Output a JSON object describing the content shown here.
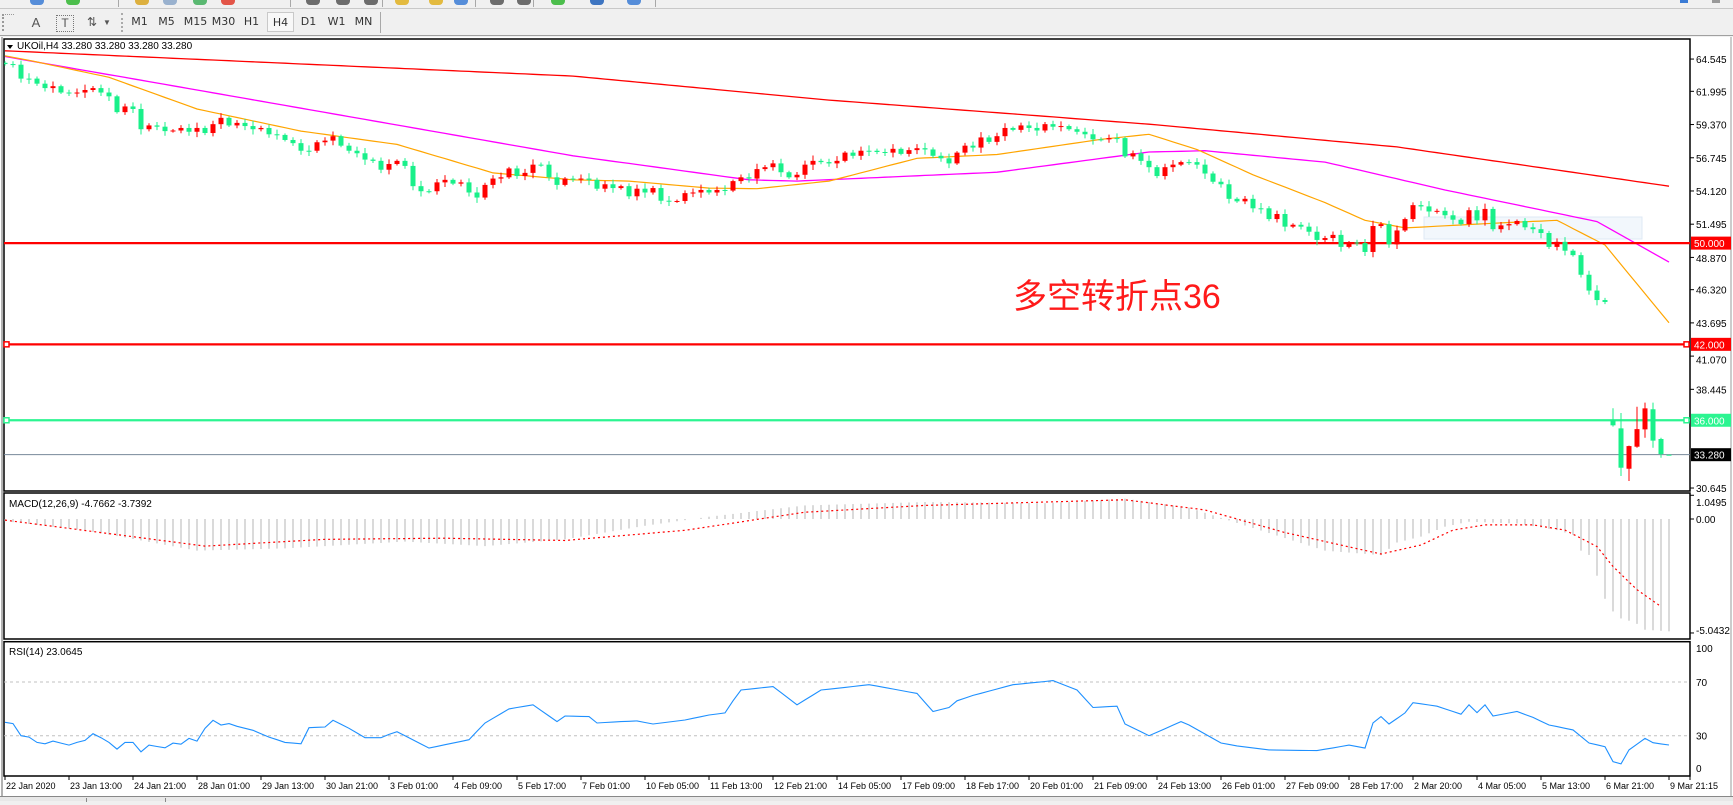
{
  "toolbar": {
    "row1_icons": [
      {
        "name": "zoom-icon",
        "color": "#3a7bd5"
      },
      {
        "name": "new-order-icon",
        "color": "#2fb52f"
      },
      {
        "name": "market-watch-icon",
        "color": "#d9a520"
      },
      {
        "name": "data-window-icon",
        "color": "#8aa6c8"
      },
      {
        "name": "navigator-icon",
        "color": "#3fae5a"
      },
      {
        "name": "stop-icon",
        "color": "#e03a2a"
      },
      {
        "name": "crosshair-icon",
        "color": "#555555"
      },
      {
        "name": "period-separator-icon",
        "color": "#555555"
      },
      {
        "name": "grid-icon",
        "color": "#555555"
      },
      {
        "name": "pencil-icon",
        "color": "#e0b020"
      },
      {
        "name": "pencil-icon",
        "color": "#e0b020"
      },
      {
        "name": "tile-windows-icon",
        "color": "#3a7bd5"
      },
      {
        "name": "hline-icon",
        "color": "#555555"
      },
      {
        "name": "hline-icon",
        "color": "#555555"
      },
      {
        "name": "add-icon",
        "color": "#2fb52f"
      },
      {
        "name": "refresh-icon",
        "color": "#1e5fb8"
      },
      {
        "name": "chart-icon",
        "color": "#3a7bd5"
      }
    ],
    "row2_tools": {
      "text_label": "A",
      "text_box_label": "T"
    },
    "timeframes": [
      "M1",
      "M5",
      "M15",
      "M30",
      "H1",
      "H4",
      "D1",
      "W1",
      "MN"
    ],
    "active_timeframe": "H4"
  },
  "chart_title": "UKOil,H4  33.280 33.280 33.280 33.280",
  "annotation": "多空转折点36",
  "chart_data": {
    "type": "candlestick",
    "symbol": "UKOil",
    "timeframe": "H4",
    "colors": {
      "bull": "#ff0000",
      "bear": "#19f08a",
      "ma_fast": "#ffa500",
      "ma_mid": "#ff00ff",
      "ma_slow": "#ff0000",
      "rsi": "#1e90ff",
      "macd_hist": "#c0c0c0",
      "macd_signal": "#ff0000"
    },
    "price_axis": {
      "ylim": [
        30.41,
        66.13
      ],
      "ticks": [
        "64.545",
        "61.995",
        "59.370",
        "56.745",
        "54.120",
        "51.495",
        "48.870",
        "46.320",
        "43.695",
        "41.070",
        "38.445",
        "30.645"
      ]
    },
    "horizontal_lines": [
      {
        "price": 50.0,
        "label": "50.000",
        "color": "#ff0000",
        "label_text_color": "#ffffff",
        "markers": false
      },
      {
        "price": 42.0,
        "label": "42.000",
        "color": "#ff0000",
        "label_text_color": "#ffffff",
        "markers": true
      },
      {
        "price": 36.0,
        "label": "36.000",
        "color": "#2cf591",
        "label_text_color": "#ffffff",
        "markers": true
      },
      {
        "price": 33.28,
        "label": "33.280",
        "color": "#778899",
        "label_bg": "#000000",
        "label_text_color": "#ffffff",
        "markers": false,
        "thin": true
      }
    ],
    "bars": {
      "close": [
        64.15,
        64.1,
        63.0,
        63.0,
        62.6,
        62.25,
        62.4,
        61.9,
        61.85,
        61.9,
        62.1,
        62.25,
        61.9,
        61.6,
        60.35,
        60.8,
        60.6,
        59.0,
        59.3,
        59.2,
        58.85,
        58.9,
        59.1,
        58.8,
        59.1,
        58.7,
        59.4,
        59.9,
        59.3,
        59.5,
        59.25,
        59.0,
        59.1,
        58.6,
        58.55,
        58.15,
        57.9,
        57.3,
        57.3,
        57.97,
        58.1,
        58.45,
        57.7,
        57.3,
        57.1,
        56.6,
        56.5,
        55.8,
        56.25,
        56.5,
        56.1,
        54.5,
        54.1,
        54.1,
        54.8,
        55.0,
        54.7,
        54.8,
        54.0,
        53.6,
        54.6,
        55.1,
        55.2,
        55.9,
        55.3,
        55.55,
        56.2,
        56.2,
        55.2,
        54.6,
        55.1,
        55.05,
        55.1,
        55.0,
        54.3,
        54.65,
        54.35,
        54.5,
        53.7,
        54.3,
        54.0,
        54.35,
        53.35,
        53.3,
        53.33,
        53.95,
        54.0,
        54.2,
        54.0,
        54.2,
        54.15,
        54.9,
        55.2,
        55.1,
        55.85,
        56.0,
        56.3,
        55.6,
        55.2,
        55.4,
        56.2,
        56.5,
        56.4,
        56.3,
        56.5,
        57.15,
        56.9,
        57.3,
        57.3,
        57.2,
        57.15,
        57.45,
        57.05,
        57.35,
        57.5,
        57.4,
        56.9,
        56.7,
        56.3,
        57.15,
        57.7,
        57.55,
        58.35,
        58.0,
        58.45,
        59.1,
        58.95,
        59.3,
        59.1,
        58.9,
        59.4,
        59.2,
        59.25,
        59.0,
        58.8,
        58.6,
        58.2,
        58.2,
        58.3,
        58.3,
        56.85,
        57.1,
        56.5,
        56.0,
        55.3,
        56.0,
        56.2,
        56.4,
        56.4,
        56.2,
        55.5,
        54.85,
        54.65,
        53.5,
        53.3,
        53.5,
        52.75,
        52.75,
        51.9,
        52.3,
        51.3,
        51.45,
        51.3,
        50.9,
        50.25,
        50.4,
        50.65,
        49.7,
        50.05,
        50.0,
        49.3,
        51.35,
        51.5,
        49.9,
        51.0,
        51.9,
        53.0,
        52.9,
        52.5,
        52.55,
        52.2,
        51.85,
        51.5,
        52.6,
        51.8,
        52.7,
        51.1,
        51.4,
        51.5,
        51.75,
        51.25,
        51.1,
        50.8,
        49.7,
        50.1,
        49.4,
        49.05,
        47.5,
        46.25,
        45.5,
        45.35
      ],
      "ohlc_after_gap": [
        [
          36.0,
          36.95,
          35.5,
          35.6
        ],
        [
          35.36,
          36.57,
          31.6,
          32.25
        ],
        [
          32.17,
          34.0,
          31.2,
          33.96
        ],
        [
          33.91,
          37.07,
          33.83,
          35.3
        ],
        [
          35.28,
          37.39,
          34.62,
          36.94
        ],
        [
          36.87,
          37.39,
          33.83,
          34.39
        ],
        [
          34.52,
          34.62,
          33.04,
          33.33
        ],
        [
          33.28,
          33.28,
          33.28,
          33.28
        ]
      ]
    },
    "moving_averages": {
      "fast": [
        [
          0,
          64.8
        ],
        [
          3,
          64.45
        ],
        [
          13,
          63.1
        ],
        [
          24,
          60.6
        ],
        [
          37,
          58.85
        ],
        [
          49,
          57.8
        ],
        [
          61,
          55.55
        ],
        [
          71,
          55.0
        ],
        [
          78,
          54.9
        ],
        [
          88,
          54.35
        ],
        [
          94,
          54.3
        ],
        [
          103,
          54.9
        ],
        [
          114,
          56.7
        ],
        [
          124,
          57.0
        ],
        [
          137,
          58.2
        ],
        [
          143,
          58.6
        ],
        [
          149,
          57.4
        ],
        [
          156,
          55.4
        ],
        [
          165,
          53.2
        ],
        [
          170,
          51.8
        ],
        [
          175,
          51.2
        ],
        [
          187,
          51.6
        ],
        [
          194,
          51.8
        ],
        [
          200,
          49.85
        ],
        [
          208,
          43.7
        ]
      ],
      "mid": [
        [
          0,
          64.75
        ],
        [
          71,
          56.9
        ],
        [
          93,
          55.0
        ],
        [
          99,
          54.9
        ],
        [
          124,
          55.6
        ],
        [
          143,
          57.2
        ],
        [
          150,
          57.3
        ],
        [
          165,
          56.4
        ],
        [
          180,
          54.2
        ],
        [
          199,
          51.7
        ],
        [
          208,
          48.5
        ]
      ],
      "slow": [
        [
          0,
          65.2
        ],
        [
          71,
          63.2
        ],
        [
          103,
          61.3
        ],
        [
          143,
          59.4
        ],
        [
          174,
          57.6
        ],
        [
          208,
          54.5
        ]
      ]
    },
    "macd": {
      "label": "MACD(12,26,9) -4.7662 -3.7392",
      "ylim": [
        -5.31,
        1.15
      ],
      "ticks": [
        "1.0495",
        "0.00",
        "-5.0432"
      ],
      "histogram": [
        [
          0,
          -0.1
        ],
        [
          10,
          -0.5
        ],
        [
          24,
          -1.4
        ],
        [
          35,
          -1.3
        ],
        [
          50,
          -1.0
        ],
        [
          60,
          -1.2
        ],
        [
          70,
          -0.9
        ],
        [
          80,
          -0.3
        ],
        [
          88,
          0.1
        ],
        [
          100,
          0.6
        ],
        [
          115,
          0.75
        ],
        [
          130,
          0.7
        ],
        [
          140,
          0.9
        ],
        [
          148,
          0.5
        ],
        [
          156,
          -0.4
        ],
        [
          165,
          -1.4
        ],
        [
          172,
          -1.6
        ],
        [
          174,
          -1.04
        ],
        [
          177,
          -0.78
        ],
        [
          180,
          -0.34
        ],
        [
          183,
          -0.12
        ],
        [
          189,
          -0.2
        ],
        [
          194,
          -0.49
        ],
        [
          196,
          -0.7
        ],
        [
          197,
          -1.4
        ],
        [
          198,
          -1.59
        ],
        [
          199,
          -2.51
        ],
        [
          200,
          -3.53
        ],
        [
          201,
          -4.09
        ],
        [
          202,
          -4.4
        ],
        [
          203,
          -4.5
        ],
        [
          204,
          -4.64
        ],
        [
          205,
          -4.9
        ],
        [
          208,
          -4.97
        ]
      ],
      "signal": [
        [
          0,
          -0.05
        ],
        [
          12,
          -0.6
        ],
        [
          25,
          -1.2
        ],
        [
          40,
          -0.9
        ],
        [
          55,
          -0.85
        ],
        [
          70,
          -0.95
        ],
        [
          85,
          -0.5
        ],
        [
          100,
          0.3
        ],
        [
          115,
          0.6
        ],
        [
          130,
          0.75
        ],
        [
          140,
          0.85
        ],
        [
          150,
          0.4
        ],
        [
          160,
          -0.6
        ],
        [
          172,
          -1.55
        ],
        [
          177,
          -1.15
        ],
        [
          181,
          -0.49
        ],
        [
          185,
          -0.26
        ],
        [
          191,
          -0.26
        ],
        [
          195,
          -0.49
        ],
        [
          199,
          -1.22
        ],
        [
          201,
          -2.1
        ],
        [
          204,
          -3.13
        ],
        [
          207,
          -3.87
        ]
      ]
    },
    "rsi": {
      "label": "RSI(14) 23.0645",
      "ylim": [
        0,
        100
      ],
      "levels": [
        70,
        30
      ],
      "ticks": [
        "100",
        "70",
        "30",
        "0"
      ],
      "values": [
        [
          0,
          40
        ],
        [
          1,
          39
        ],
        [
          2,
          30
        ],
        [
          3,
          29
        ],
        [
          4,
          25
        ],
        [
          5,
          24
        ],
        [
          6,
          26
        ],
        [
          7,
          24.5
        ],
        [
          8,
          23
        ],
        [
          9,
          25
        ],
        [
          10,
          26.5
        ],
        [
          11,
          31.5
        ],
        [
          12,
          28.5
        ],
        [
          13,
          25
        ],
        [
          14,
          20
        ],
        [
          15,
          25
        ],
        [
          16,
          25
        ],
        [
          17,
          18
        ],
        [
          18,
          23
        ],
        [
          19,
          22
        ],
        [
          20,
          21
        ],
        [
          21,
          24.5
        ],
        [
          22,
          23.7
        ],
        [
          23,
          28
        ],
        [
          24,
          26
        ],
        [
          25,
          35.5
        ],
        [
          26,
          41.5
        ],
        [
          27,
          38
        ],
        [
          28,
          39
        ],
        [
          29,
          37
        ],
        [
          31,
          34
        ],
        [
          33,
          29
        ],
        [
          35,
          25
        ],
        [
          37,
          24
        ],
        [
          38,
          36
        ],
        [
          40,
          36.5
        ],
        [
          41,
          41.5
        ],
        [
          43,
          35.5
        ],
        [
          44,
          32
        ],
        [
          45,
          28.5
        ],
        [
          47,
          28.5
        ],
        [
          48,
          31
        ],
        [
          49,
          33
        ],
        [
          53,
          20.8
        ],
        [
          58,
          27
        ],
        [
          60,
          39.5
        ],
        [
          63,
          50
        ],
        [
          66,
          53
        ],
        [
          69,
          40.5
        ],
        [
          70,
          44.7
        ],
        [
          73,
          44.2
        ],
        [
          74,
          39.5
        ],
        [
          77,
          40.5
        ],
        [
          79,
          41
        ],
        [
          81,
          38.7
        ],
        [
          85,
          41.7
        ],
        [
          88,
          45.4
        ],
        [
          90,
          47
        ],
        [
          91,
          56
        ],
        [
          92,
          64
        ],
        [
          96,
          66.6
        ],
        [
          99,
          53
        ],
        [
          102,
          64
        ],
        [
          108,
          68
        ],
        [
          114,
          61.5
        ],
        [
          116,
          48
        ],
        [
          118,
          51
        ],
        [
          119,
          56
        ],
        [
          121,
          60
        ],
        [
          126,
          68
        ],
        [
          131,
          71
        ],
        [
          134,
          64
        ],
        [
          136,
          51
        ],
        [
          139,
          52
        ],
        [
          140,
          38.7
        ],
        [
          143,
          30
        ],
        [
          147,
          40.5
        ],
        [
          148,
          38
        ],
        [
          152,
          24.6
        ],
        [
          154,
          22.4
        ],
        [
          158,
          19.4
        ],
        [
          164,
          18.9
        ],
        [
          168,
          23
        ],
        [
          170,
          20.8
        ],
        [
          171,
          39.5
        ],
        [
          172,
          44.2
        ],
        [
          173,
          38.7
        ],
        [
          175,
          47
        ],
        [
          176,
          54.6
        ],
        [
          179,
          52
        ],
        [
          182,
          46
        ],
        [
          183,
          53
        ],
        [
          184,
          47.2
        ],
        [
          185,
          53
        ],
        [
          186,
          44.7
        ],
        [
          189,
          48
        ],
        [
          191,
          43.6
        ],
        [
          193,
          38
        ],
        [
          196,
          34.3
        ],
        [
          198,
          24.6
        ],
        [
          200,
          21.8
        ],
        [
          201,
          10.7
        ],
        [
          202,
          9
        ],
        [
          203,
          19.4
        ],
        [
          205,
          28
        ],
        [
          206,
          24.8
        ],
        [
          208,
          23.06
        ]
      ]
    },
    "x_labels": [
      "22 Jan 2020",
      "23 Jan 13:00",
      "24 Jan 21:00",
      "28 Jan 01:00",
      "29 Jan 13:00",
      "30 Jan 21:00",
      "3 Feb 01:00",
      "4 Feb 09:00",
      "5 Feb 17:00",
      "7 Feb 01:00",
      "10 Feb 05:00",
      "11 Feb 13:00",
      "12 Feb 21:00",
      "14 Feb 05:00",
      "17 Feb 09:00",
      "18 Feb 17:00",
      "20 Feb 01:00",
      "21 Feb 09:00",
      "24 Feb 13:00",
      "26 Feb 01:00",
      "27 Feb 09:00",
      "28 Feb 17:00",
      "2 Mar 20:00",
      "4 Mar 05:00",
      "5 Mar 13:00",
      "6 Mar 21:00",
      "9 Mar 21:15"
    ]
  }
}
